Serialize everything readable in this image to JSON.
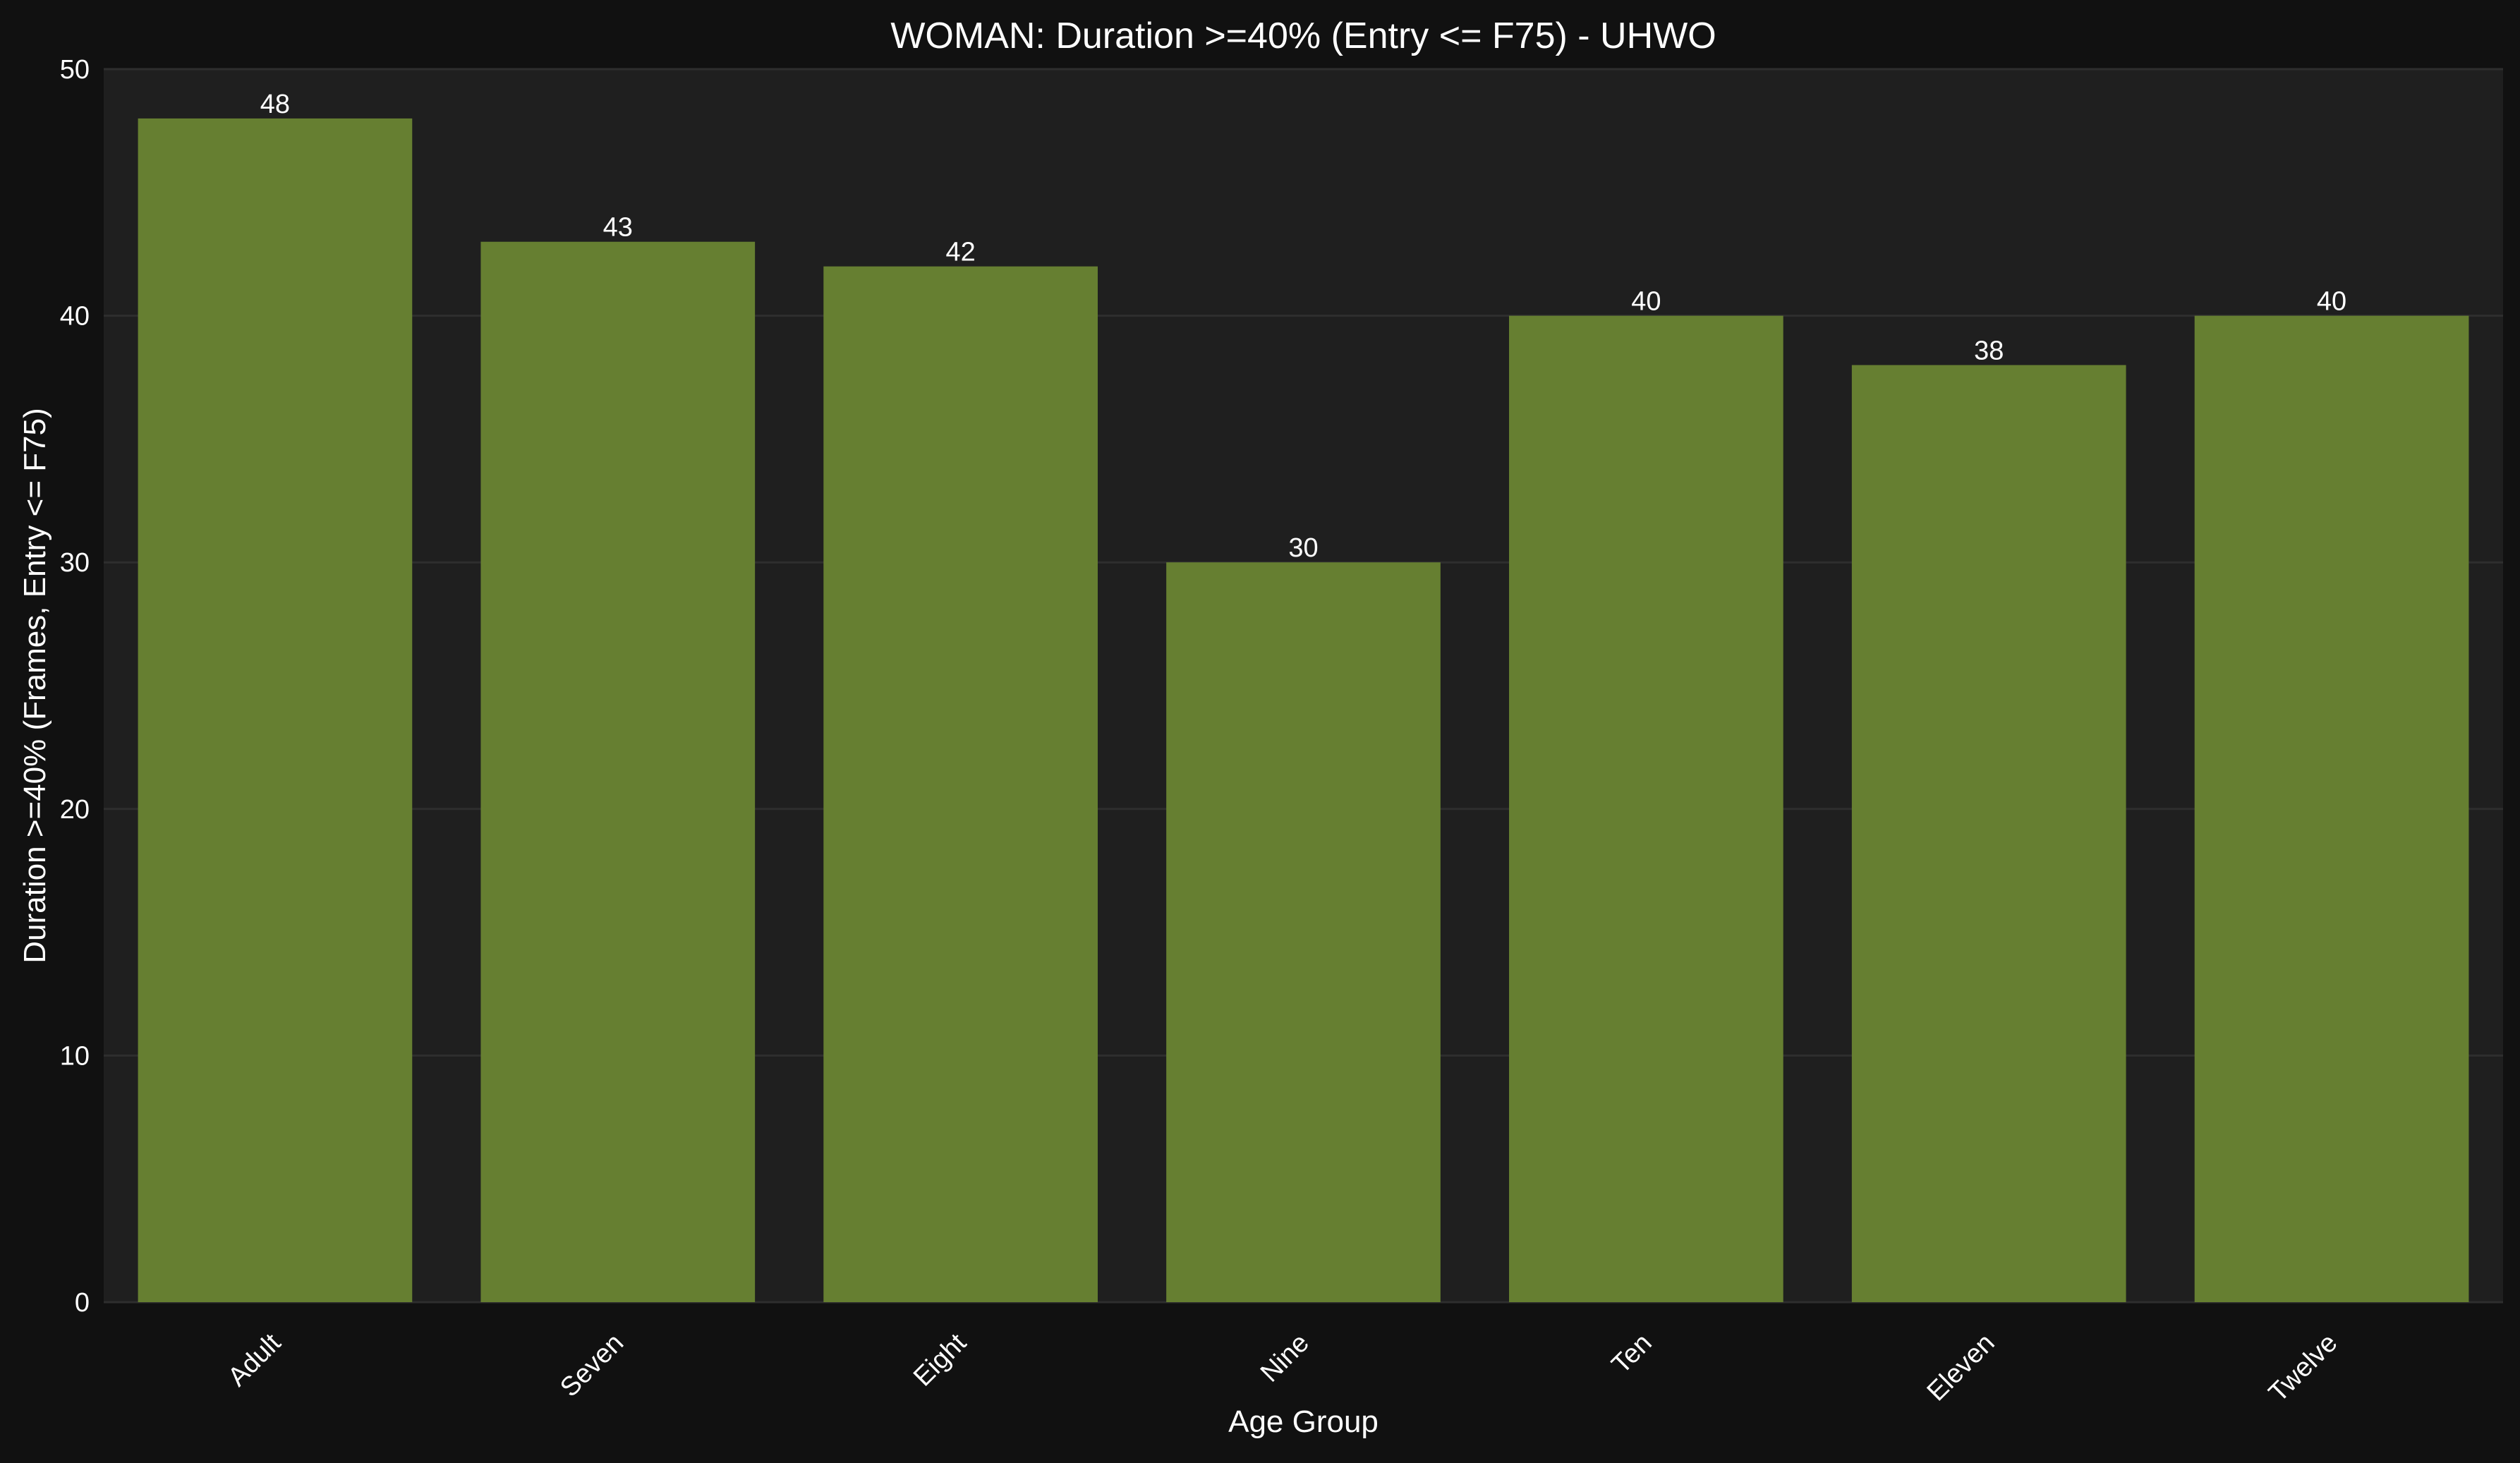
{
  "chart_data": {
    "type": "bar",
    "title": "WOMAN: Duration >=40% (Entry <= F75) - UHWO",
    "xlabel": "Age Group",
    "ylabel": "Duration >=40% (Frames, Entry <= F75)",
    "categories": [
      "Adult",
      "Seven",
      "Eight",
      "Nine",
      "Ten",
      "Eleven",
      "Twelve"
    ],
    "values": [
      48,
      43,
      42,
      30,
      40,
      38,
      40
    ],
    "ylim": [
      0,
      50
    ],
    "yticks": [
      0,
      10,
      20,
      30,
      40,
      50
    ],
    "grid": true,
    "colors": {
      "background": "#111111",
      "plot_background": "#1f1f1f",
      "bar": "#667f31",
      "grid": "#2e2e2e",
      "text": "#ffffff"
    }
  }
}
